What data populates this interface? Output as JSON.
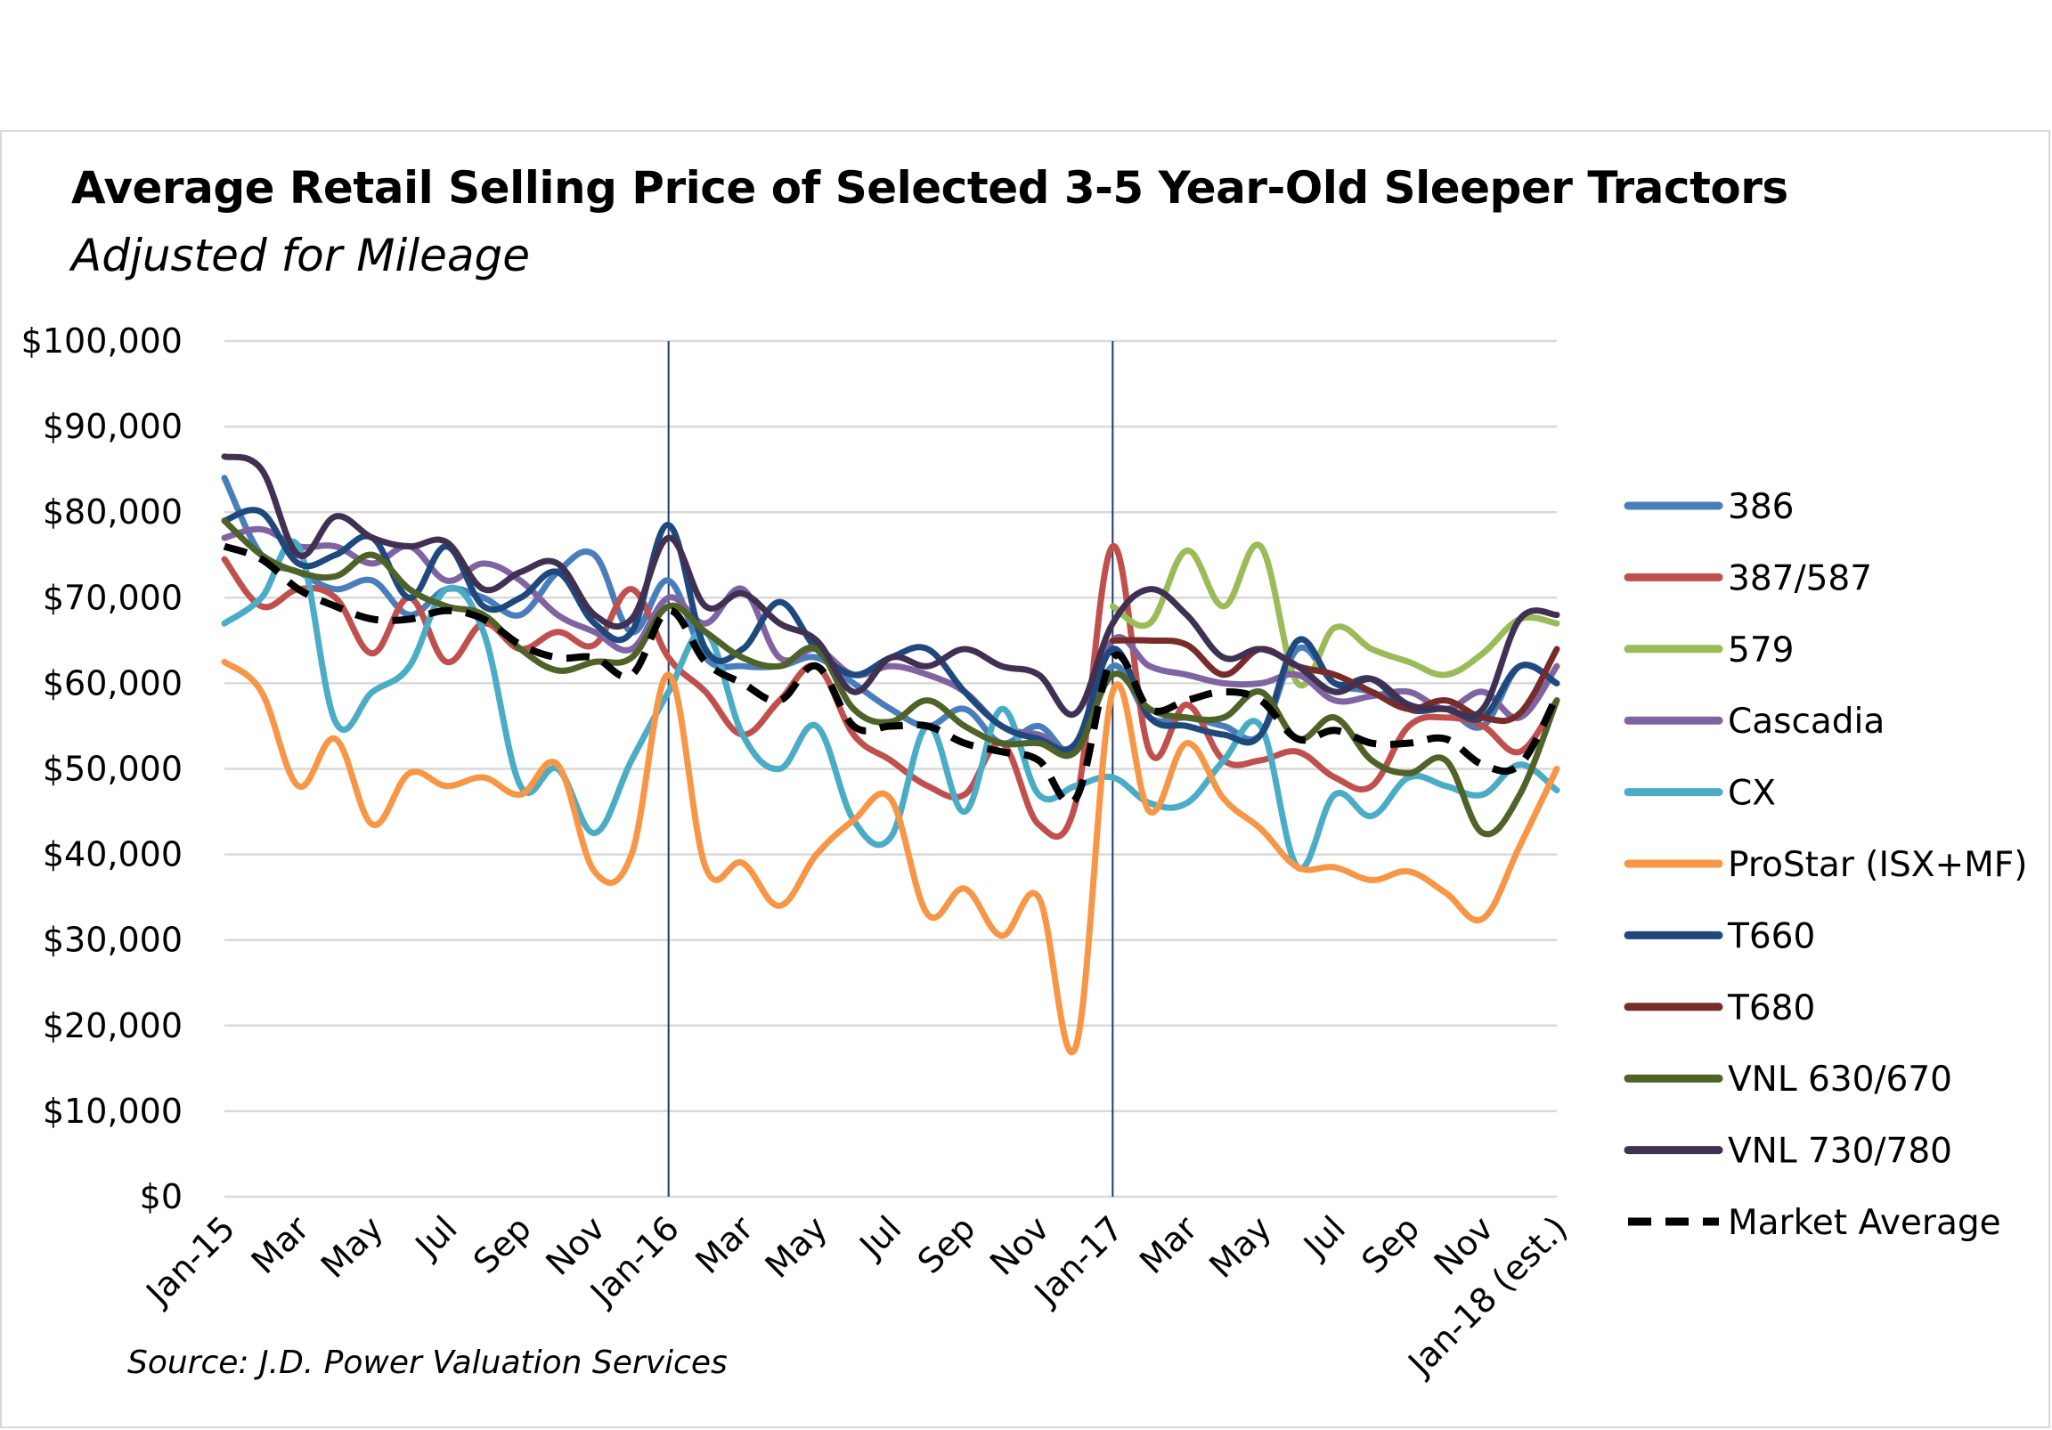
{
  "title": "Average Retail Selling Price of Selected 3-5 Year-Old Sleeper Tractors",
  "subtitle": "Adjusted for Mileage",
  "source": "Source: J.D. Power Valuation Services",
  "chart_data": {
    "type": "line",
    "title": "Average Retail Selling Price of Selected 3-5 Year-Old Sleeper Tractors",
    "subtitle": "Adjusted for Mileage",
    "xlabel": "",
    "ylabel": "",
    "ylim": [
      0,
      100000
    ],
    "yticks": [
      "$0",
      "$10,000",
      "$20,000",
      "$30,000",
      "$40,000",
      "$50,000",
      "$60,000",
      "$70,000",
      "$80,000",
      "$90,000",
      "$100,000"
    ],
    "x_tick_labels": [
      "Jan-15",
      "Mar",
      "May",
      "Jul",
      "Sep",
      "Nov",
      "Jan-16",
      "Mar",
      "May",
      "Jul",
      "Sep",
      "Nov",
      "Jan-17",
      "Mar",
      "May",
      "Jul",
      "Sep",
      "Nov",
      "Jan-18 (est.)"
    ],
    "grid": "horizontal",
    "legend_position": "right",
    "vertical_lines_at": [
      "Jan-16",
      "Jan-17"
    ],
    "x": [
      "Jan-15",
      "Feb-15",
      "Mar-15",
      "Apr-15",
      "May-15",
      "Jun-15",
      "Jul-15",
      "Aug-15",
      "Sep-15",
      "Oct-15",
      "Nov-15",
      "Dec-15",
      "Jan-16",
      "Feb-16",
      "Mar-16",
      "Apr-16",
      "May-16",
      "Jun-16",
      "Jul-16",
      "Aug-16",
      "Sep-16",
      "Oct-16",
      "Nov-16",
      "Dec-16",
      "Jan-17",
      "Feb-17",
      "Mar-17",
      "Apr-17",
      "May-17",
      "Jun-17",
      "Jul-17",
      "Aug-17",
      "Sep-17",
      "Oct-17",
      "Nov-17",
      "Dec-17",
      "Jan-18"
    ],
    "series": [
      {
        "name": "386",
        "color": "#4a7ebb",
        "dashed": false,
        "values": [
          84000,
          75000,
          73000,
          71000,
          72000,
          68000,
          71000,
          70000,
          68000,
          73000,
          75000,
          66000,
          72000,
          63000,
          62000,
          62000,
          63000,
          60000,
          57000,
          55000,
          57000,
          53000,
          55000,
          52000,
          62000,
          56000,
          56000,
          55000,
          54000,
          64000,
          60000,
          59000,
          57000,
          57000,
          55000,
          62000,
          60000
        ]
      },
      {
        "name": "387/587",
        "color": "#c0504d",
        "dashed": false,
        "values": [
          74500,
          69000,
          71000,
          70000,
          63500,
          70000,
          62500,
          67000,
          64000,
          66000,
          64500,
          71000,
          63000,
          59000,
          54000,
          58000,
          62000,
          54000,
          51000,
          48000,
          47000,
          53000,
          43500,
          46000,
          76000,
          52000,
          57500,
          51000,
          51000,
          52000,
          49000,
          48000,
          55000,
          56000,
          55000,
          52000,
          58000
        ]
      },
      {
        "name": "579",
        "color": "#9bbb59",
        "dashed": false,
        "values": [
          null,
          null,
          null,
          null,
          null,
          null,
          null,
          null,
          null,
          null,
          null,
          null,
          null,
          null,
          null,
          null,
          null,
          null,
          null,
          null,
          null,
          null,
          null,
          null,
          69000,
          67000,
          75500,
          69000,
          76000,
          60000,
          66500,
          64000,
          62500,
          61000,
          63500,
          67500,
          67000
        ]
      },
      {
        "name": "Cascadia",
        "color": "#8064a2",
        "dashed": false,
        "values": [
          77000,
          78000,
          76000,
          76000,
          74000,
          76000,
          72000,
          74000,
          72000,
          68000,
          66000,
          64000,
          70000,
          67000,
          71000,
          63000,
          64000,
          61000,
          62000,
          61000,
          59000,
          55000,
          54000,
          53000,
          65000,
          62000,
          61000,
          60000,
          60000,
          61000,
          58000,
          58500,
          59000,
          57000,
          59000,
          56000,
          62000
        ]
      },
      {
        "name": "CX",
        "color": "#4bacc6",
        "dashed": false,
        "values": [
          67000,
          70000,
          76000,
          55500,
          59000,
          62000,
          71000,
          66000,
          48000,
          50000,
          42500,
          51000,
          59000,
          66000,
          54000,
          50000,
          55000,
          44000,
          42000,
          55000,
          45000,
          57000,
          47000,
          48000,
          49000,
          46000,
          46000,
          51000,
          55000,
          38500,
          47000,
          44500,
          49000,
          48000,
          47000,
          50500,
          47500
        ]
      },
      {
        "name": "ProStar (ISX+MF)",
        "color": "#f79646",
        "dashed": false,
        "values": [
          62500,
          59000,
          48000,
          53500,
          43500,
          49500,
          48000,
          49000,
          47000,
          50500,
          38000,
          40000,
          61000,
          38500,
          39000,
          34000,
          40000,
          44000,
          46500,
          33000,
          36000,
          30500,
          35000,
          17500,
          59000,
          45000,
          53000,
          46500,
          43000,
          38500,
          38500,
          37000,
          38000,
          35500,
          32500,
          41000,
          50000
        ]
      },
      {
        "name": "T660",
        "color": "#1f497d",
        "dashed": false,
        "values": [
          79000,
          80000,
          74000,
          75000,
          77000,
          70000,
          76000,
          69000,
          70000,
          73000,
          67000,
          66000,
          78500,
          64000,
          64000,
          69500,
          64000,
          61000,
          63000,
          64000,
          59000,
          55000,
          53500,
          53000,
          64000,
          56000,
          55000,
          54000,
          54000,
          65000,
          60000,
          60500,
          57000,
          57000,
          56000,
          62000,
          60000
        ]
      },
      {
        "name": "T680",
        "color": "#772c2a",
        "dashed": false,
        "values": [
          null,
          null,
          null,
          null,
          null,
          null,
          null,
          null,
          null,
          null,
          null,
          null,
          null,
          null,
          null,
          null,
          null,
          null,
          null,
          null,
          null,
          null,
          null,
          null,
          65000,
          65000,
          64500,
          61000,
          64000,
          62000,
          61000,
          59000,
          57000,
          58000,
          56000,
          56500,
          64000
        ]
      },
      {
        "name": "VNL 630/670",
        "color": "#4f6228",
        "dashed": false,
        "values": [
          79000,
          75000,
          73000,
          72500,
          75000,
          71000,
          69000,
          68000,
          64000,
          61500,
          62500,
          63000,
          69000,
          66000,
          63000,
          62000,
          64000,
          57000,
          55500,
          58000,
          55000,
          53000,
          53000,
          52000,
          61000,
          57000,
          56000,
          56000,
          59000,
          53500,
          56000,
          51000,
          49500,
          51000,
          42500,
          47000,
          58000
        ]
      },
      {
        "name": "VNL 730/780",
        "color": "#403152",
        "dashed": false,
        "values": [
          86500,
          85000,
          75000,
          79500,
          77000,
          76000,
          76500,
          71000,
          73000,
          74000,
          68000,
          67500,
          77000,
          69000,
          70500,
          67000,
          65000,
          59000,
          63000,
          62000,
          64000,
          62000,
          61000,
          56500,
          67000,
          71000,
          68000,
          63000,
          64000,
          62000,
          59000,
          60500,
          57500,
          57000,
          57000,
          67500,
          68000
        ]
      },
      {
        "name": "Market Average",
        "color": "#000000",
        "dashed": true,
        "values": [
          76000,
          74500,
          71000,
          69000,
          67500,
          67500,
          68500,
          67500,
          64500,
          63000,
          63000,
          61000,
          68500,
          62500,
          60000,
          58000,
          62000,
          55000,
          55000,
          55000,
          53000,
          52000,
          51000,
          46500,
          63000,
          57000,
          58000,
          59000,
          58000,
          53500,
          54500,
          53000,
          53000,
          53500,
          50500,
          50500,
          58500
        ]
      }
    ]
  }
}
